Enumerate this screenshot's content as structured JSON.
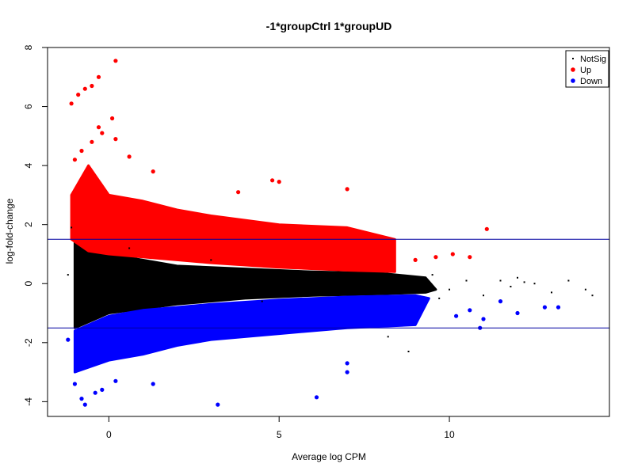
{
  "chart_data": {
    "type": "scatter",
    "title": "-1*groupCtrl 1*groupUD",
    "xlabel": "Average log CPM",
    "ylabel": "log-fold-change",
    "xlim": [
      -1.8,
      14.7
    ],
    "ylim": [
      -4.5,
      8.0
    ],
    "x_ticks": [
      0,
      5,
      10
    ],
    "y_ticks": [
      -4,
      -2,
      0,
      2,
      4,
      6,
      8
    ],
    "x_tick_labels": [
      "0",
      "5",
      "10"
    ],
    "y_tick_labels": [
      "-4",
      "-2",
      "0",
      "2",
      "4",
      "6",
      "8"
    ],
    "grid": false,
    "legend_position": "top-right",
    "hlines": [
      1.5,
      -1.5
    ],
    "hline_color": "#0000a0",
    "series": [
      {
        "name": "NotSig",
        "color": "#000000",
        "marker": "small-dot",
        "points": [
          [
            -1.2,
            0.3
          ],
          [
            -1.0,
            -0.5
          ],
          [
            -0.8,
            1.1
          ],
          [
            -0.5,
            0.4
          ],
          [
            -0.2,
            -0.9
          ],
          [
            0.0,
            0.6
          ],
          [
            0.3,
            -0.3
          ],
          [
            0.6,
            1.2
          ],
          [
            1.0,
            0.1
          ],
          [
            1.5,
            -0.7
          ],
          [
            2.0,
            0.5
          ],
          [
            2.5,
            -0.2
          ],
          [
            3.0,
            0.8
          ],
          [
            3.5,
            -0.4
          ],
          [
            4.0,
            0.3
          ],
          [
            4.5,
            -0.6
          ],
          [
            5.0,
            0.2
          ],
          [
            5.5,
            -0.3
          ],
          [
            6.0,
            0.4
          ],
          [
            6.5,
            -0.2
          ],
          [
            7.0,
            0.1
          ],
          [
            7.5,
            -0.1
          ],
          [
            8.0,
            0.2
          ],
          [
            8.5,
            -0.3
          ],
          [
            9.0,
            0.1
          ],
          [
            9.5,
            0.3
          ],
          [
            10.0,
            -0.2
          ],
          [
            10.5,
            0.1
          ],
          [
            11.0,
            -0.4
          ],
          [
            11.5,
            0.1
          ],
          [
            12.0,
            0.2
          ],
          [
            12.5,
            0.0
          ],
          [
            13.0,
            -0.3
          ],
          [
            13.5,
            0.1
          ],
          [
            14.0,
            -0.2
          ],
          [
            14.2,
            -0.4
          ],
          [
            12.2,
            0.05
          ],
          [
            11.8,
            -0.1
          ],
          [
            9.7,
            -0.5
          ],
          [
            8.8,
            -2.3
          ],
          [
            8.2,
            -1.8
          ],
          [
            -1.1,
            1.9
          ]
        ]
      },
      {
        "name": "Up",
        "color": "#ff0000",
        "marker": "filled-circle",
        "points": [
          [
            -1.1,
            6.1
          ],
          [
            -0.9,
            6.4
          ],
          [
            -0.7,
            6.6
          ],
          [
            -0.5,
            6.7
          ],
          [
            -0.3,
            7.0
          ],
          [
            0.2,
            7.55
          ],
          [
            0.1,
            5.6
          ],
          [
            -0.3,
            5.3
          ],
          [
            -0.2,
            5.1
          ],
          [
            0.2,
            4.9
          ],
          [
            -1.0,
            4.2
          ],
          [
            -0.8,
            4.5
          ],
          [
            -0.5,
            4.8
          ],
          [
            0.6,
            4.3
          ],
          [
            1.3,
            3.8
          ],
          [
            4.8,
            3.5
          ],
          [
            5.0,
            3.45
          ],
          [
            7.0,
            3.2
          ],
          [
            11.1,
            1.85
          ],
          [
            10.6,
            0.9
          ],
          [
            10.1,
            1.0
          ],
          [
            9.6,
            0.9
          ],
          [
            9.0,
            0.8
          ],
          [
            3.8,
            3.1
          ]
        ]
      },
      {
        "name": "Down",
        "color": "#0000ff",
        "marker": "filled-circle",
        "points": [
          [
            -1.2,
            -1.9
          ],
          [
            -1.0,
            -3.4
          ],
          [
            -0.8,
            -3.9
          ],
          [
            -0.7,
            -4.1
          ],
          [
            -0.4,
            -3.7
          ],
          [
            -0.2,
            -3.6
          ],
          [
            0.2,
            -3.3
          ],
          [
            1.3,
            -3.4
          ],
          [
            3.2,
            -4.1
          ],
          [
            6.1,
            -3.85
          ],
          [
            7.0,
            -3.0
          ],
          [
            7.0,
            -2.7
          ],
          [
            9.0,
            -1.1
          ],
          [
            10.2,
            -1.1
          ],
          [
            10.6,
            -0.9
          ],
          [
            11.0,
            -1.2
          ],
          [
            11.5,
            -0.6
          ],
          [
            12.0,
            -1.0
          ],
          [
            12.8,
            -0.8
          ],
          [
            13.2,
            -0.8
          ],
          [
            10.9,
            -1.5
          ]
        ]
      }
    ]
  }
}
